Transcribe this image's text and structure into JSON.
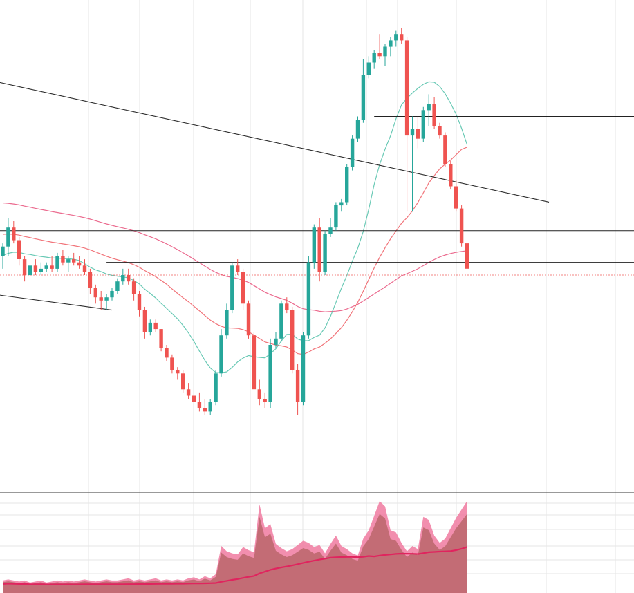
{
  "chart_data": {
    "type": "candlestick",
    "colors": {
      "up": "#26a69a",
      "down": "#ef5350",
      "grid": "#e6e6e6",
      "trendline": "#2a2a2a",
      "ma_slow": "#e8507a",
      "ma_mid": "#ef5a62",
      "ma_fast": "#4fbfa8",
      "reference_line": "#ef5350",
      "volume_fill": "#c06a72",
      "volume_outline": "#f07aa0",
      "volume_ma": "#e0245e"
    },
    "grid": true,
    "price_axis": {
      "min": 0,
      "max": 100
    },
    "candles": [
      {
        "o": 38,
        "h": 42,
        "l": 34,
        "c": 41
      },
      {
        "o": 41,
        "h": 50,
        "l": 38,
        "c": 47
      },
      {
        "o": 47,
        "h": 49,
        "l": 42,
        "c": 43
      },
      {
        "o": 43,
        "h": 44,
        "l": 35,
        "c": 37
      },
      {
        "o": 37,
        "h": 38,
        "l": 30,
        "c": 32
      },
      {
        "o": 32,
        "h": 36,
        "l": 30,
        "c": 35
      },
      {
        "o": 35,
        "h": 37,
        "l": 32,
        "c": 33
      },
      {
        "o": 33,
        "h": 36,
        "l": 32,
        "c": 34
      },
      {
        "o": 34,
        "h": 36,
        "l": 33,
        "c": 35
      },
      {
        "o": 35,
        "h": 38,
        "l": 33,
        "c": 34
      },
      {
        "o": 34,
        "h": 39,
        "l": 33,
        "c": 38
      },
      {
        "o": 38,
        "h": 40,
        "l": 35,
        "c": 36
      },
      {
        "o": 36,
        "h": 38,
        "l": 33,
        "c": 37
      },
      {
        "o": 37,
        "h": 39,
        "l": 35,
        "c": 36
      },
      {
        "o": 36,
        "h": 38,
        "l": 34,
        "c": 35
      },
      {
        "o": 35,
        "h": 37,
        "l": 32,
        "c": 33
      },
      {
        "o": 33,
        "h": 34,
        "l": 26,
        "c": 28
      },
      {
        "o": 28,
        "h": 29,
        "l": 23,
        "c": 25
      },
      {
        "o": 25,
        "h": 27,
        "l": 21,
        "c": 24
      },
      {
        "o": 24,
        "h": 26,
        "l": 21,
        "c": 25
      },
      {
        "o": 25,
        "h": 28,
        "l": 24,
        "c": 27
      },
      {
        "o": 27,
        "h": 31,
        "l": 26,
        "c": 30
      },
      {
        "o": 30,
        "h": 34,
        "l": 29,
        "c": 32
      },
      {
        "o": 32,
        "h": 34,
        "l": 29,
        "c": 30
      },
      {
        "o": 30,
        "h": 31,
        "l": 24,
        "c": 26
      },
      {
        "o": 26,
        "h": 27,
        "l": 19,
        "c": 21
      },
      {
        "o": 21,
        "h": 22,
        "l": 12,
        "c": 14
      },
      {
        "o": 14,
        "h": 18,
        "l": 13,
        "c": 17
      },
      {
        "o": 17,
        "h": 18,
        "l": 14,
        "c": 15
      },
      {
        "o": 15,
        "h": 15,
        "l": 8,
        "c": 9
      },
      {
        "o": 9,
        "h": 10,
        "l": 5,
        "c": 6
      },
      {
        "o": 6,
        "h": 7,
        "l": 1,
        "c": 2
      },
      {
        "o": 2,
        "h": 3,
        "l": -1,
        "c": 1
      },
      {
        "o": 1,
        "h": 2,
        "l": -5,
        "c": -4
      },
      {
        "o": -4,
        "h": -2,
        "l": -7,
        "c": -6
      },
      {
        "o": -6,
        "h": -4,
        "l": -9,
        "c": -8
      },
      {
        "o": -8,
        "h": -5,
        "l": -11,
        "c": -10
      },
      {
        "o": -10,
        "h": -7,
        "l": -12,
        "c": -11
      },
      {
        "o": -11,
        "h": -7,
        "l": -12,
        "c": -8
      },
      {
        "o": -8,
        "h": 2,
        "l": -9,
        "c": 1
      },
      {
        "o": 1,
        "h": 15,
        "l": 0,
        "c": 13
      },
      {
        "o": 13,
        "h": 23,
        "l": 12,
        "c": 21
      },
      {
        "o": 21,
        "h": 36,
        "l": 20,
        "c": 35
      },
      {
        "o": 35,
        "h": 37,
        "l": 32,
        "c": 33
      },
      {
        "o": 33,
        "h": 34,
        "l": 21,
        "c": 23
      },
      {
        "o": 23,
        "h": 24,
        "l": 12,
        "c": 13
      },
      {
        "o": 13,
        "h": 14,
        "l": -3,
        "c": -4
      },
      {
        "o": -4,
        "h": -1,
        "l": -9,
        "c": -7
      },
      {
        "o": -7,
        "h": -5,
        "l": -10,
        "c": -8
      },
      {
        "o": -8,
        "h": 12,
        "l": -10,
        "c": 10
      },
      {
        "o": 10,
        "h": 14,
        "l": 9,
        "c": 12
      },
      {
        "o": 12,
        "h": 24,
        "l": 11,
        "c": 23
      },
      {
        "o": 23,
        "h": 25,
        "l": 20,
        "c": 21
      },
      {
        "o": 21,
        "h": 22,
        "l": 1,
        "c": 2
      },
      {
        "o": 2,
        "h": 4,
        "l": -12,
        "c": -8
      },
      {
        "o": -8,
        "h": 14,
        "l": -9,
        "c": 13
      },
      {
        "o": 13,
        "h": 38,
        "l": 12,
        "c": 36
      },
      {
        "o": 36,
        "h": 48,
        "l": 34,
        "c": 47
      },
      {
        "o": 47,
        "h": 50,
        "l": 30,
        "c": 33
      },
      {
        "o": 33,
        "h": 46,
        "l": 32,
        "c": 45
      },
      {
        "o": 45,
        "h": 50,
        "l": 44,
        "c": 47
      },
      {
        "o": 47,
        "h": 55,
        "l": 46,
        "c": 54
      },
      {
        "o": 54,
        "h": 56,
        "l": 52,
        "c": 55
      },
      {
        "o": 55,
        "h": 67,
        "l": 54,
        "c": 66
      },
      {
        "o": 66,
        "h": 76,
        "l": 65,
        "c": 75
      },
      {
        "o": 75,
        "h": 82,
        "l": 74,
        "c": 81
      },
      {
        "o": 81,
        "h": 100,
        "l": 80,
        "c": 95
      },
      {
        "o": 95,
        "h": 101,
        "l": 94,
        "c": 99
      },
      {
        "o": 99,
        "h": 103,
        "l": 97,
        "c": 102
      },
      {
        "o": 102,
        "h": 108,
        "l": 100,
        "c": 101
      },
      {
        "o": 101,
        "h": 105,
        "l": 98,
        "c": 104
      },
      {
        "o": 104,
        "h": 107,
        "l": 101,
        "c": 106
      },
      {
        "o": 106,
        "h": 109,
        "l": 104,
        "c": 108
      },
      {
        "o": 108,
        "h": 110,
        "l": 105,
        "c": 106
      },
      {
        "o": 106,
        "h": 107,
        "l": 52,
        "c": 76
      },
      {
        "o": 76,
        "h": 82,
        "l": 52,
        "c": 78
      },
      {
        "o": 78,
        "h": 82,
        "l": 72,
        "c": 75
      },
      {
        "o": 75,
        "h": 85,
        "l": 74,
        "c": 84
      },
      {
        "o": 84,
        "h": 89,
        "l": 79,
        "c": 86
      },
      {
        "o": 86,
        "h": 88,
        "l": 78,
        "c": 79
      },
      {
        "o": 79,
        "h": 80,
        "l": 75,
        "c": 76
      },
      {
        "o": 76,
        "h": 77,
        "l": 66,
        "c": 67
      },
      {
        "o": 67,
        "h": 68,
        "l": 59,
        "c": 60
      },
      {
        "o": 60,
        "h": 62,
        "l": 52,
        "c": 53
      },
      {
        "o": 53,
        "h": 54,
        "l": 41,
        "c": 42
      },
      {
        "o": 42,
        "h": 46,
        "l": 20,
        "c": 34
      }
    ],
    "volume": [
      12,
      13,
      12,
      11,
      12,
      10,
      11,
      12,
      10,
      11,
      12,
      11,
      12,
      11,
      12,
      13,
      12,
      11,
      12,
      13,
      12,
      12,
      13,
      14,
      12,
      13,
      12,
      13,
      14,
      12,
      13,
      12,
      13,
      12,
      14,
      15,
      13,
      16,
      14,
      18,
      45,
      40,
      38,
      37,
      44,
      41,
      39,
      85,
      62,
      66,
      47,
      43,
      40,
      42,
      46,
      50,
      48,
      44,
      46,
      38,
      47,
      55,
      45,
      42,
      38,
      36,
      52,
      60,
      74,
      88,
      83,
      60,
      58,
      48,
      40,
      45,
      42,
      73,
      70,
      55,
      48,
      52,
      62,
      72,
      80,
      88
    ],
    "horizontal_lines": [
      {
        "kind": "resistance_short",
        "price": 82
      },
      {
        "kind": "level_high",
        "price": 46
      },
      {
        "kind": "level_low",
        "price": 36
      }
    ],
    "reference_price": 32,
    "trendlines": [
      {
        "from": {
          "candle": -20,
          "price": 100
        },
        "to": {
          "candle": 100,
          "price": 55
        }
      },
      {
        "from": {
          "candle": -2,
          "price": 26
        },
        "to": {
          "candle": 20,
          "price": 21
        }
      }
    ]
  }
}
